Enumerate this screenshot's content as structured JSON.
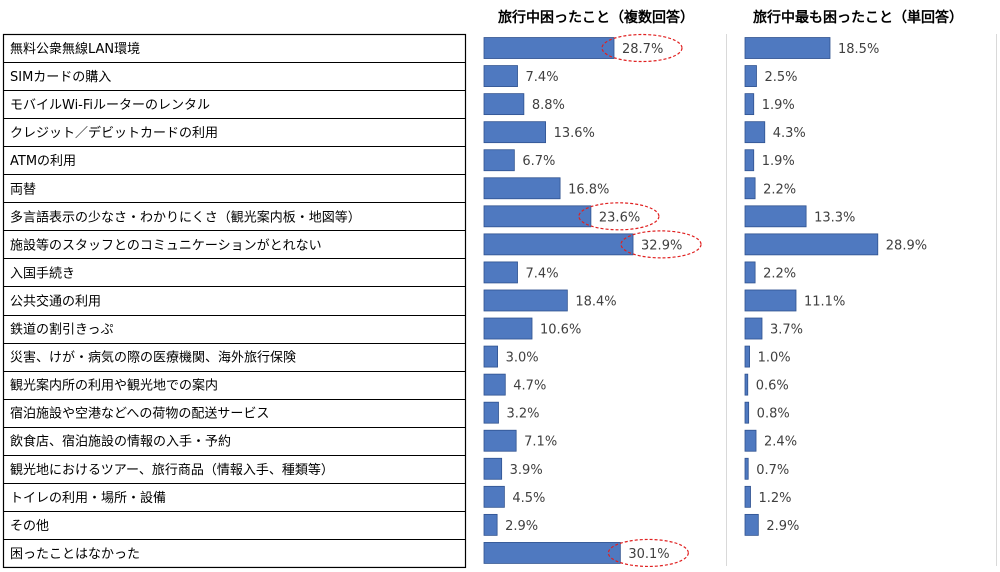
{
  "chart_data": {
    "type": "bar",
    "orientation": "horizontal",
    "categories": [
      "無料公衆無線LAN環境",
      "SIMカードの購入",
      "モバイルWi-Fiルーターのレンタル",
      "クレジット／デビットカードの利用",
      "ATMの利用",
      "両替",
      "多言語表示の少なさ・わかりにくさ（観光案内板・地図等）",
      "施設等のスタッフとのコミュニケーションがとれない",
      "入国手続き",
      "公共交通の利用",
      "鉄道の割引きっぷ",
      "災害、けが・病気の際の医療機関、海外旅行保険",
      "観光案内所の利用や観光地での案内",
      "宿泊施設や空港などへの荷物の配送サービス",
      "飲食店、宿泊施設の情報の入手・予約",
      "観光地におけるツアー、旅行商品（情報入手、種類等）",
      "トイレの利用・場所・設備",
      "その他",
      "困ったことはなかった"
    ],
    "series": [
      {
        "name": "旅行中困ったこと（複数回答）",
        "values": [
          28.7,
          7.4,
          8.8,
          13.6,
          6.7,
          16.8,
          23.6,
          32.9,
          7.4,
          18.4,
          10.6,
          3.0,
          4.7,
          3.2,
          7.1,
          3.9,
          4.5,
          2.9,
          30.1
        ],
        "labels": [
          "28.7%",
          "7.4%",
          "8.8%",
          "13.6%",
          "6.7%",
          "16.8%",
          "23.6%",
          "32.9%",
          "7.4%",
          "18.4%",
          "10.6%",
          "3.0%",
          "4.7%",
          "3.2%",
          "7.1%",
          "3.9%",
          "4.5%",
          "2.9%",
          "30.1%"
        ],
        "highlighted": [
          0,
          6,
          7,
          18
        ]
      },
      {
        "name": "旅行中最も困ったこと（単回答）",
        "values": [
          18.5,
          2.5,
          1.9,
          4.3,
          1.9,
          2.2,
          13.3,
          28.9,
          2.2,
          11.1,
          3.7,
          1.0,
          0.6,
          0.8,
          2.4,
          0.7,
          1.2,
          2.9,
          null
        ],
        "labels": [
          "18.5%",
          "2.5%",
          "1.9%",
          "4.3%",
          "1.9%",
          "2.2%",
          "13.3%",
          "28.9%",
          "2.2%",
          "11.1%",
          "3.7%",
          "1.0%",
          "0.6%",
          "0.8%",
          "2.4%",
          "0.7%",
          "1.2%",
          "2.9%",
          ""
        ]
      }
    ],
    "colors": {
      "bar": "#4f79c0",
      "bar_border": "#2f528f",
      "highlight": "#e02020",
      "divider": "#d9d9d9"
    },
    "grid": false,
    "legend": "none"
  }
}
